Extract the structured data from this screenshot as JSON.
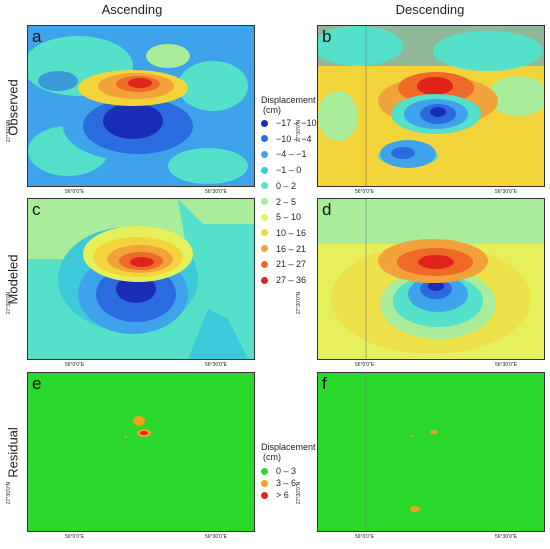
{
  "columns": {
    "ascending": "Ascending",
    "descending": "Descending"
  },
  "rows": {
    "observed": "Observed",
    "modeled": "Modeled",
    "residual": "Residual"
  },
  "panels": [
    "a",
    "b",
    "c",
    "d",
    "e",
    "f"
  ],
  "axes": {
    "lat": "27°30'0\"N",
    "lon1": "56°0'0\"E",
    "lon2": "56°30'0\"E"
  },
  "legend_displacement": {
    "title_line1": "Displacement",
    "title_line2": "(cm)",
    "items": [
      {
        "label": "−17 – −10",
        "color": "#1a2db8"
      },
      {
        "label": "−10 – −4",
        "color": "#2b6be0"
      },
      {
        "label": "−4 – −1",
        "color": "#3ea3ea"
      },
      {
        "label": "−1 – 0",
        "color": "#3cc9d9"
      },
      {
        "label": "0 – 2",
        "color": "#55e0c9"
      },
      {
        "label": "2 – 5",
        "color": "#a9ec9a"
      },
      {
        "label": "5 – 10",
        "color": "#e6f05a"
      },
      {
        "label": "10 – 16",
        "color": "#f3d43a"
      },
      {
        "label": "16 – 21",
        "color": "#f2a23a"
      },
      {
        "label": "21 – 27",
        "color": "#ee6a26"
      },
      {
        "label": "27 – 36",
        "color": "#e0241c"
      }
    ]
  },
  "legend_residual": {
    "title_line1": "Displacement",
    "title_line2": "(cm)",
    "items": [
      {
        "label": "0 – 3",
        "color": "#29d82a"
      },
      {
        "label": "3 – 6",
        "color": "#f0a21f"
      },
      {
        "label": "> 6",
        "color": "#e0241c"
      }
    ]
  }
}
